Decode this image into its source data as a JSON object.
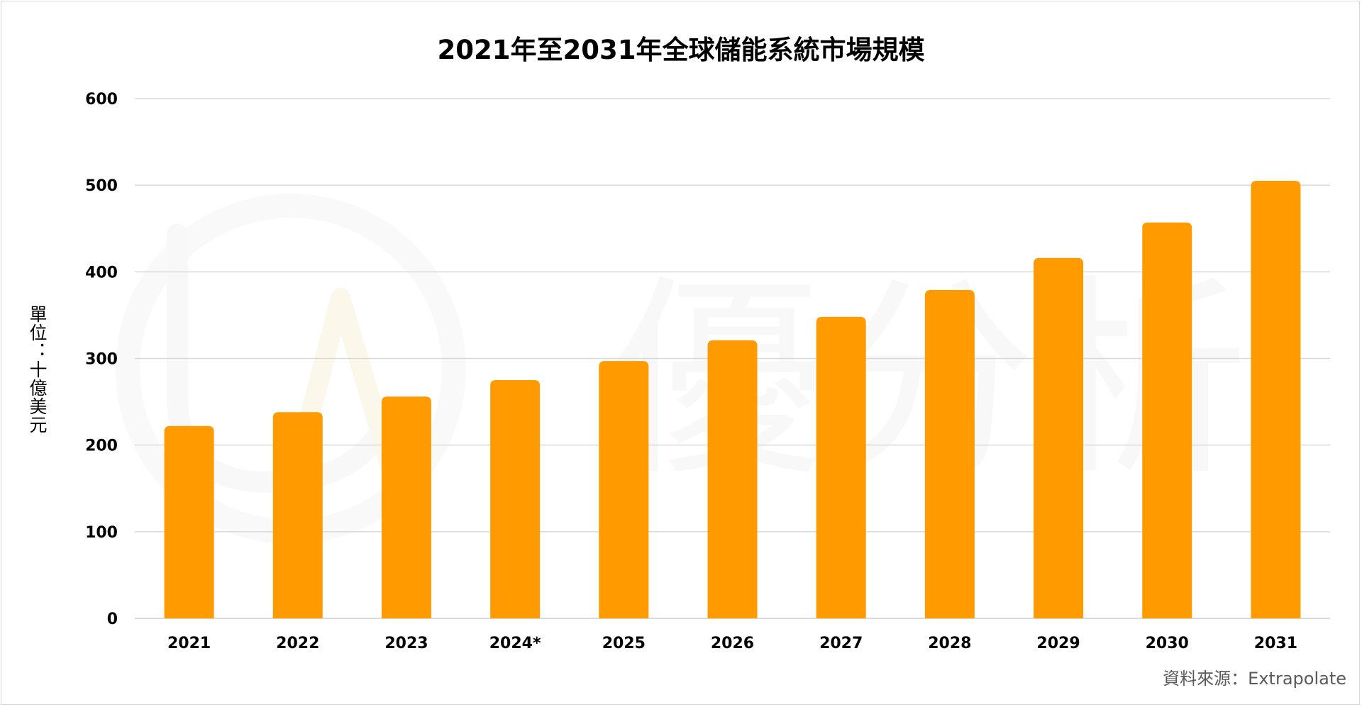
{
  "chart_data": {
    "type": "bar",
    "title": "2021年至2031年全球儲能系統市場規模",
    "ylabel": "單位：十億美元",
    "xlabel": "",
    "categories": [
      "2021",
      "2022",
      "2023",
      "2024*",
      "2025",
      "2026",
      "2027",
      "2028",
      "2029",
      "2030",
      "2031"
    ],
    "values": [
      222,
      238,
      256,
      275,
      297,
      321,
      348,
      379,
      416,
      457,
      505
    ],
    "ylim": [
      0,
      600
    ],
    "yticks": [
      "0",
      "100",
      "200",
      "300",
      "400",
      "500",
      "600"
    ],
    "grid": true,
    "legend": "none",
    "bar_color": "#FF9A00",
    "grid_color": "#d9d9d9",
    "watermark": "優分析",
    "source": "資料來源：Extrapolate"
  }
}
